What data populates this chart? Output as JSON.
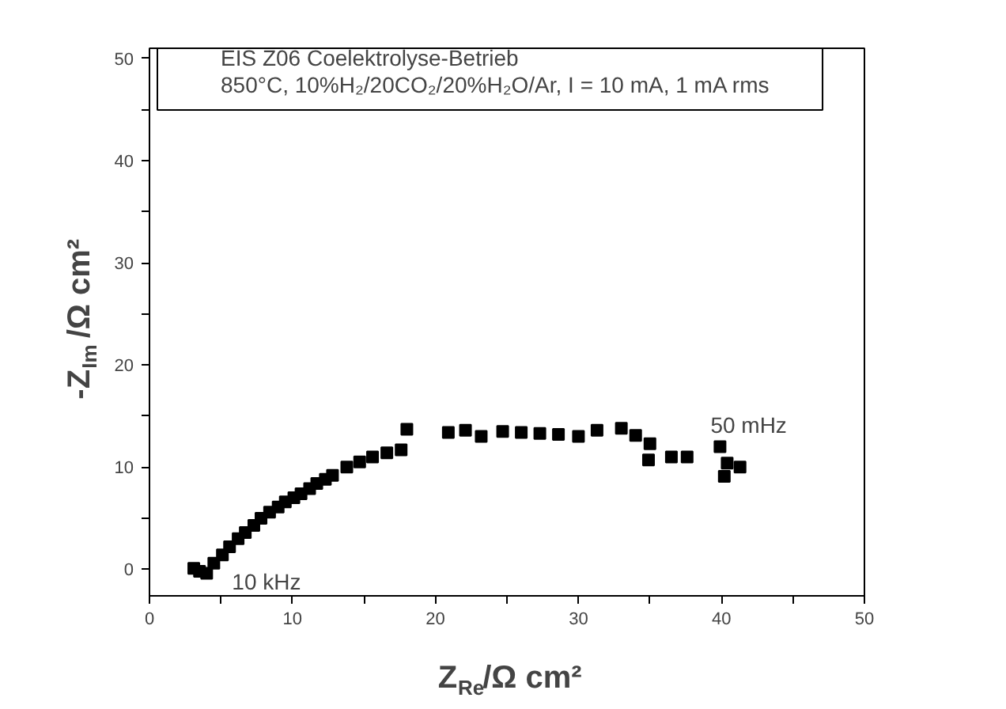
{
  "chart_data": {
    "type": "scatter",
    "title": "EIS Z06 Coelektrolyse-Betrieb",
    "subtitle": "850°C, 10%H₂/20CO₂/20%H₂O/Ar, I = 10 mA, 1 mA rms",
    "xlabel": "Z$_{Re}$/Ω cm²",
    "ylabel": "-Z$_{Im}$/Ω cm²",
    "x": [
      3.1,
      3.5,
      4.0,
      4.5,
      5.1,
      5.6,
      6.2,
      6.7,
      7.3,
      7.8,
      8.4,
      9.0,
      9.5,
      10.1,
      10.6,
      11.2,
      11.7,
      12.3,
      12.8,
      13.8,
      14.7,
      15.6,
      16.6,
      17.6,
      18.0,
      20.9,
      22.1,
      23.2,
      24.7,
      26.0,
      27.3,
      28.6,
      30.0,
      31.3,
      33.0,
      34.0,
      35.0,
      34.9,
      36.5,
      37.6,
      39.9,
      40.4,
      41.3,
      40.2
    ],
    "values": [
      0.1,
      -0.2,
      -0.4,
      0.6,
      1.4,
      2.2,
      3.0,
      3.6,
      4.3,
      5.0,
      5.6,
      6.1,
      6.6,
      7.0,
      7.4,
      7.9,
      8.4,
      8.8,
      9.2,
      10.0,
      10.5,
      11.0,
      11.4,
      11.7,
      13.7,
      13.4,
      13.6,
      13.0,
      13.5,
      13.4,
      13.3,
      13.2,
      13.0,
      13.6,
      13.8,
      13.1,
      12.3,
      10.7,
      11.0,
      11.0,
      12.0,
      10.4,
      10.0,
      9.1
    ],
    "color": "#000000",
    "marker": "square",
    "xlim": [
      0,
      50
    ],
    "ylim": [
      -2.6,
      51
    ],
    "xticks": [
      0,
      {
        "value": 5,
        "label": null
      },
      10,
      {
        "value": 15,
        "label": null
      },
      20,
      {
        "value": 25,
        "label": null
      },
      30,
      {
        "value": 35,
        "label": null
      },
      40,
      {
        "value": 45,
        "label": null
      },
      50
    ],
    "yticks": [
      0,
      {
        "value": 5,
        "label": null
      },
      10,
      {
        "value": 15,
        "label": null
      },
      20,
      {
        "value": 25,
        "label": null
      },
      30,
      {
        "value": 35,
        "label": null
      },
      40,
      {
        "value": 45,
        "label": null
      },
      50
    ],
    "annotations": [
      {
        "text": "10 kHz",
        "x": 4.0,
        "y": -0.4
      },
      {
        "text": "50 mHz",
        "x": 39.9,
        "y": 12.0
      }
    ],
    "grid": false
  }
}
